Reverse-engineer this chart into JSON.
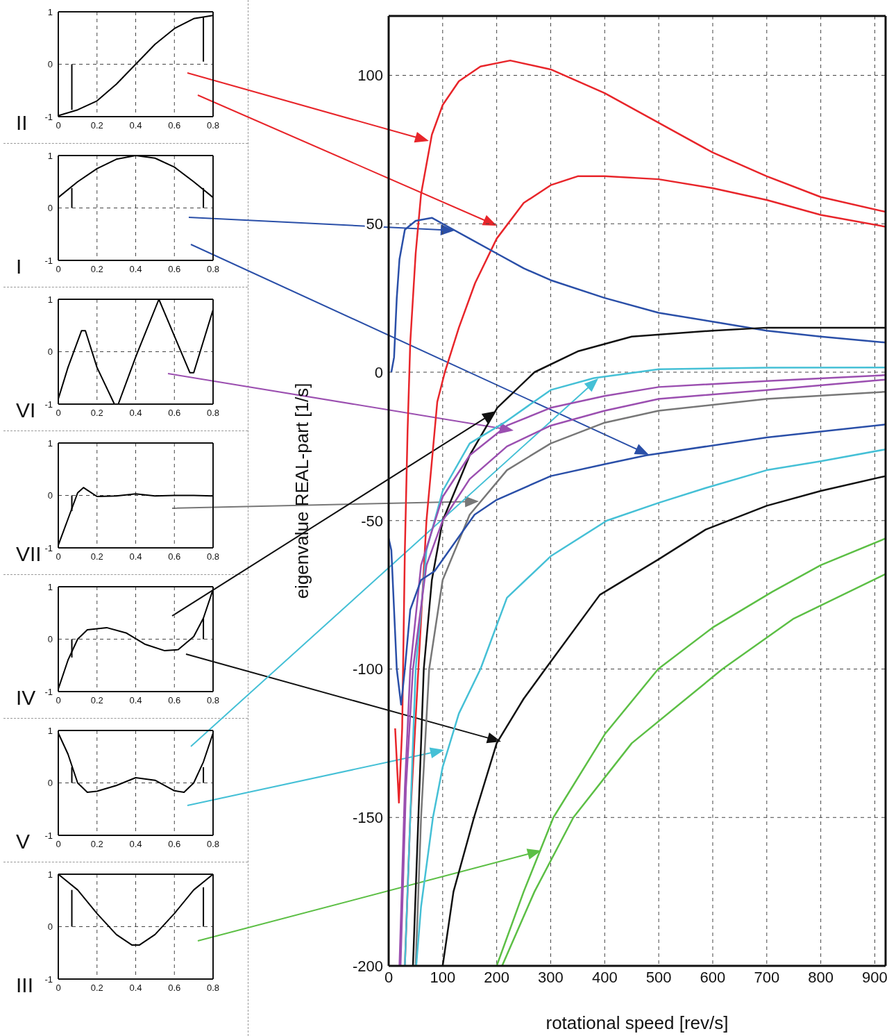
{
  "chart_data": [
    {
      "type": "line",
      "title": "II",
      "xlim": [
        0,
        0.8
      ],
      "xticks": [
        0,
        0.2,
        0.4,
        0.6,
        0.8
      ],
      "ylim": [
        -1,
        1
      ],
      "yticks": [
        -1,
        0,
        1
      ],
      "grid": true,
      "series": [
        {
          "color": "#000000",
          "x": [
            0,
            0.1,
            0.2,
            0.3,
            0.4,
            0.5,
            0.6,
            0.7,
            0.8
          ],
          "values": [
            -0.98,
            -0.87,
            -0.7,
            -0.38,
            0,
            0.38,
            0.68,
            0.87,
            0.93
          ]
        },
        {
          "color": "#000000",
          "x": [
            0.07,
            0.07
          ],
          "values": [
            -0.87,
            0
          ]
        },
        {
          "color": "#000000",
          "x": [
            0.75,
            0.75
          ],
          "values": [
            0.9,
            0.05
          ]
        }
      ]
    },
    {
      "type": "line",
      "title": "I",
      "xlim": [
        0,
        0.8
      ],
      "xticks": [
        0,
        0.2,
        0.4,
        0.6,
        0.8
      ],
      "ylim": [
        -1,
        1
      ],
      "yticks": [
        -1,
        0,
        1
      ],
      "grid": true,
      "series": [
        {
          "color": "#000000",
          "x": [
            0,
            0.1,
            0.2,
            0.3,
            0.4,
            0.5,
            0.6,
            0.7,
            0.8
          ],
          "values": [
            0.2,
            0.5,
            0.75,
            0.93,
            1,
            0.95,
            0.78,
            0.5,
            0.2
          ]
        },
        {
          "color": "#000000",
          "x": [
            0.07,
            0.07
          ],
          "values": [
            0.38,
            0
          ]
        },
        {
          "color": "#000000",
          "x": [
            0.75,
            0.75
          ],
          "values": [
            0.38,
            0
          ]
        }
      ]
    },
    {
      "type": "line",
      "title": "VI",
      "xlim": [
        0,
        0.8
      ],
      "xticks": [
        0,
        0.2,
        0.4,
        0.6,
        0.8
      ],
      "ylim": [
        -1,
        1
      ],
      "yticks": [
        -1,
        0,
        1
      ],
      "grid": true,
      "series": [
        {
          "color": "#000000",
          "x": [
            0,
            0.05,
            0.12,
            0.14,
            0.2,
            0.29,
            0.31,
            0.4,
            0.52,
            0.6,
            0.68,
            0.7,
            0.8
          ],
          "values": [
            -0.9,
            -0.3,
            0.4,
            0.4,
            -0.3,
            -1,
            -1,
            -0.1,
            1,
            0.3,
            -0.4,
            -0.4,
            0.8
          ]
        }
      ]
    },
    {
      "type": "line",
      "title": "VII",
      "xlim": [
        0,
        0.8
      ],
      "xticks": [
        0,
        0.2,
        0.4,
        0.6,
        0.8
      ],
      "ylim": [
        -1,
        1
      ],
      "yticks": [
        -1,
        0,
        1
      ],
      "grid": true,
      "series": [
        {
          "color": "#000000",
          "x": [
            0,
            0.05,
            0.1,
            0.13,
            0.15,
            0.2,
            0.3,
            0.4,
            0.5,
            0.6,
            0.7,
            0.8
          ],
          "values": [
            -0.95,
            -0.45,
            0.05,
            0.15,
            0.1,
            -0.02,
            -0.01,
            0.03,
            -0.01,
            0,
            0,
            -0.01
          ]
        },
        {
          "color": "#000000",
          "x": [
            0.07,
            0.07
          ],
          "values": [
            -0.3,
            0
          ]
        }
      ]
    },
    {
      "type": "line",
      "title": "IV",
      "xlim": [
        0,
        0.8
      ],
      "xticks": [
        0,
        0.2,
        0.4,
        0.6,
        0.8
      ],
      "ylim": [
        -1,
        1
      ],
      "yticks": [
        -1,
        0,
        1
      ],
      "grid": true,
      "series": [
        {
          "color": "#000000",
          "x": [
            0,
            0.05,
            0.1,
            0.15,
            0.25,
            0.35,
            0.45,
            0.55,
            0.62,
            0.7,
            0.75,
            0.8
          ],
          "values": [
            -0.95,
            -0.4,
            0,
            0.18,
            0.22,
            0.12,
            -0.1,
            -0.22,
            -0.2,
            0.05,
            0.4,
            0.95
          ]
        },
        {
          "color": "#000000",
          "x": [
            0.07,
            0.07
          ],
          "values": [
            -0.35,
            0
          ]
        },
        {
          "color": "#000000",
          "x": [
            0.75,
            0.75
          ],
          "values": [
            0.4,
            0
          ]
        }
      ]
    },
    {
      "type": "line",
      "title": "V",
      "xlim": [
        0,
        0.8
      ],
      "xticks": [
        0,
        0.2,
        0.4,
        0.6,
        0.8
      ],
      "ylim": [
        -1,
        1
      ],
      "yticks": [
        -1,
        0,
        1
      ],
      "grid": true,
      "series": [
        {
          "color": "#000000",
          "x": [
            0,
            0.05,
            0.1,
            0.15,
            0.2,
            0.3,
            0.4,
            0.5,
            0.6,
            0.65,
            0.7,
            0.75,
            0.8
          ],
          "values": [
            0.95,
            0.55,
            0,
            -0.18,
            -0.16,
            -0.05,
            0.1,
            0.05,
            -0.15,
            -0.18,
            0,
            0.4,
            0.95
          ]
        },
        {
          "color": "#000000",
          "x": [
            0.07,
            0.07
          ],
          "values": [
            0.3,
            0
          ]
        },
        {
          "color": "#000000",
          "x": [
            0.75,
            0.75
          ],
          "values": [
            0.3,
            0
          ]
        }
      ]
    },
    {
      "type": "line",
      "title": "III",
      "xlim": [
        0,
        0.8
      ],
      "xticks": [
        0,
        0.2,
        0.4,
        0.6,
        0.8
      ],
      "ylim": [
        -1,
        1
      ],
      "yticks": [
        -1,
        0,
        1
      ],
      "grid": true,
      "series": [
        {
          "color": "#000000",
          "x": [
            0,
            0.1,
            0.2,
            0.3,
            0.38,
            0.42,
            0.5,
            0.6,
            0.7,
            0.8
          ],
          "values": [
            1,
            0.7,
            0.25,
            -0.15,
            -0.35,
            -0.35,
            -0.15,
            0.25,
            0.7,
            1
          ]
        },
        {
          "color": "#000000",
          "x": [
            0.07,
            0.07
          ],
          "values": [
            0.7,
            0
          ]
        },
        {
          "color": "#000000",
          "x": [
            0.75,
            0.75
          ],
          "values": [
            0.75,
            0
          ]
        }
      ]
    },
    {
      "type": "line",
      "xlabel": "rotational speed  [rev/s]",
      "ylabel": "eigenvalue REAL-part [1/s]",
      "xlim": [
        0,
        920
      ],
      "xticks": [
        0,
        100,
        200,
        300,
        400,
        500,
        600,
        700,
        800,
        900
      ],
      "ylim": [
        -200,
        120
      ],
      "yticks": [
        -200,
        -150,
        -100,
        -50,
        0,
        50,
        100
      ],
      "grid": true,
      "series": [
        {
          "color": "#e8252a",
          "x": [
            12,
            19,
            25,
            30,
            35,
            40,
            50,
            60,
            80,
            100,
            130,
            170,
            225,
            300,
            400,
            500,
            600,
            700,
            800,
            920
          ],
          "values": [
            -120,
            -145,
            -120,
            -60,
            -20,
            10,
            40,
            60,
            80,
            90,
            98,
            103,
            105,
            102,
            94,
            84,
            74,
            66,
            59,
            54
          ]
        },
        {
          "color": "#e8252a",
          "x": [
            30,
            40,
            55,
            70,
            90,
            104,
            130,
            160,
            200,
            250,
            300,
            350,
            400,
            500,
            600,
            700,
            800,
            920
          ],
          "values": [
            -200,
            -150,
            -100,
            -50,
            -10,
            0,
            15,
            30,
            45,
            57,
            63,
            66,
            66,
            65,
            62,
            58,
            53,
            49
          ]
        },
        {
          "color": "#2a4fa8",
          "x": [
            5,
            10,
            15,
            20,
            30,
            50,
            80,
            100,
            150,
            200,
            250,
            300,
            400,
            500,
            600,
            700,
            800,
            920
          ],
          "values": [
            0,
            5,
            25,
            38,
            48,
            51,
            52,
            50,
            45,
            40,
            35,
            31,
            25,
            20,
            17,
            14,
            12,
            10
          ]
        },
        {
          "color": "#111111",
          "x": [
            45,
            55,
            65,
            80,
            100,
            150,
            201,
            270,
            350,
            450,
            600,
            700,
            920
          ],
          "values": [
            -200,
            -150,
            -100,
            -70,
            -50,
            -28,
            -12,
            0,
            7,
            12,
            14,
            15,
            15
          ]
        },
        {
          "color": "#45c0d6",
          "x": [
            30,
            40,
            50,
            70,
            100,
            150,
            214,
            300,
            380,
            500,
            700,
            920
          ],
          "values": [
            -200,
            -150,
            -100,
            -60,
            -40,
            -24,
            -17,
            -6,
            -2,
            1,
            1.5,
            1.6
          ]
        },
        {
          "color": "#9b4fb0",
          "x": [
            20,
            30,
            40,
            60,
            100,
            150,
            219,
            300,
            400,
            500,
            700,
            920
          ],
          "values": [
            -200,
            -140,
            -100,
            -65,
            -42,
            -28,
            -18,
            -12,
            -8,
            -5,
            -3,
            -1
          ]
        },
        {
          "color": "#9b4fb0",
          "x": [
            22,
            32,
            45,
            70,
            100,
            150,
            219,
            300,
            400,
            500,
            700,
            920
          ],
          "values": [
            -200,
            -140,
            -100,
            -65,
            -50,
            -36,
            -25,
            -18,
            -13,
            -9,
            -6,
            -2.5
          ]
        },
        {
          "color": "#777777",
          "x": [
            50,
            60,
            75,
            100,
            150,
            219,
            300,
            400,
            500,
            700,
            920
          ],
          "values": [
            -200,
            -150,
            -100,
            -70,
            -48,
            -33,
            -24,
            -17,
            -13,
            -9,
            -6.6
          ]
        },
        {
          "color": "#2a4fa8",
          "x": [
            0,
            5,
            15,
            23,
            30,
            40,
            60,
            85,
            159,
            200,
            300,
            400,
            477,
            700,
            920
          ],
          "values": [
            -56,
            -60,
            -100,
            -112,
            -100,
            -80,
            -70,
            -67,
            -48,
            -43,
            -35,
            -31,
            -28,
            -22,
            -17.6
          ]
        },
        {
          "color": "#45c0d6",
          "x": [
            51,
            60,
            82,
            100,
            130,
            170,
            219,
            300,
            404,
            500,
            587,
            700,
            800,
            920
          ],
          "values": [
            -200,
            -180,
            -150,
            -133,
            -115,
            -100,
            -76,
            -62,
            -50,
            -44,
            -39,
            -33,
            -30,
            -26
          ]
        },
        {
          "color": "#111111",
          "x": [
            100,
            120,
            158,
            200,
            250,
            290,
            391,
            500,
            587,
            700,
            800,
            920
          ],
          "values": [
            -200,
            -175,
            -150,
            -125,
            -110,
            -100,
            -75,
            -63,
            -53,
            -45,
            -40,
            -35
          ]
        },
        {
          "color": "#5cbf45",
          "x": [
            200,
            250,
            305,
            400,
            499,
            600,
            710,
            800,
            920
          ],
          "values": [
            -200,
            -175,
            -150,
            -122,
            -100,
            -86,
            -74,
            -65,
            -56
          ]
        },
        {
          "color": "#5cbf45",
          "x": [
            210,
            270,
            342,
            450,
            618,
            750,
            920
          ],
          "values": [
            -200,
            -175,
            -150,
            -125,
            -100,
            -83,
            -68
          ]
        }
      ]
    }
  ]
}
